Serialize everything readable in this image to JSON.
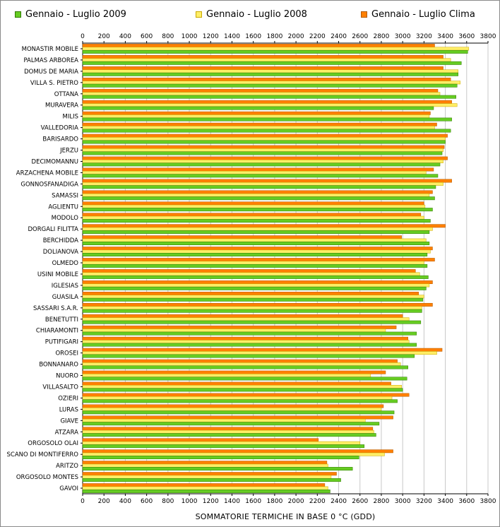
{
  "chart_data": {
    "type": "bar",
    "orientation": "horizontal",
    "title": "",
    "xlabel": "SOMMATORIE TERMICHE IN BASE 0 °C (GDD)",
    "ylabel": "",
    "xlim": [
      0,
      3800
    ],
    "ticks": [
      0,
      200,
      400,
      600,
      800,
      1000,
      1200,
      1400,
      1600,
      1800,
      2000,
      2200,
      2400,
      2600,
      2800,
      3000,
      3200,
      3400,
      3600,
      3800
    ],
    "grid": true,
    "legend_position": "top",
    "categories": [
      "MONASTIR MOBILE",
      "PALMAS ARBOREA",
      "DOMUS DE MARIA",
      "VILLA S. PIETRO",
      "OTTANA",
      "MURAVERA",
      "MILIS",
      "VALLEDORIA",
      "BARISARDO",
      "JERZU",
      "DECIMOMANNU",
      "ARZACHENA MOBILE",
      "GONNOSFANADIGA",
      "SAMASSI",
      "AGLIENTU",
      "MODOLO",
      "DORGALI FILITTA",
      "BERCHIDDA",
      "DOLIANOVA",
      "OLMEDO",
      "USINI MOBILE",
      "IGLESIAS",
      "GUASILA",
      "SASSARI S.A.R.",
      "BENETUTTI",
      "CHIARAMONTI",
      "PUTIFIGARI",
      "OROSEI",
      "BONNANARO",
      "NUORO",
      "VILLASALTO",
      "OZIERI",
      "LURAS",
      "GIAVE",
      "ATZARA",
      "ORGOSOLO OLAI",
      "SCANO DI MONTIFERRO",
      "ARITZO",
      "ORGOSOLO MONTES",
      "GAVOI"
    ],
    "series": [
      {
        "name": "Gennaio - Luglio Clima",
        "color": "#ff8000",
        "values": [
          3300,
          3380,
          3380,
          3450,
          3330,
          3460,
          3260,
          3320,
          3420,
          3390,
          3420,
          3290,
          3460,
          3280,
          3200,
          3170,
          3400,
          2990,
          3280,
          3300,
          3120,
          3280,
          3150,
          3280,
          3000,
          2940,
          3050,
          3370,
          2950,
          2840,
          2890,
          3060,
          2820,
          2910,
          2720,
          2210,
          2910,
          2290,
          2380,
          2270
        ]
      },
      {
        "name": "Gennaio - Luglio 2008",
        "color": "#ffee66",
        "values": [
          3620,
          3450,
          3520,
          3540,
          3350,
          3510,
          3250,
          3300,
          3400,
          3380,
          3380,
          3220,
          3380,
          3250,
          3210,
          3200,
          3280,
          3220,
          3260,
          3200,
          3160,
          3250,
          3200,
          3180,
          3060,
          2840,
          3060,
          3320,
          2980,
          2700,
          2990,
          2900,
          2800,
          2650,
          2730,
          2600,
          2830,
          2300,
          2330,
          2300
        ]
      },
      {
        "name": "Gennaio - Luglio 2009",
        "color": "#66cc22",
        "values": [
          3610,
          3550,
          3520,
          3510,
          3500,
          3290,
          3460,
          3450,
          3400,
          3370,
          3350,
          3330,
          3310,
          3300,
          3280,
          3260,
          3250,
          3250,
          3230,
          3230,
          3240,
          3220,
          3190,
          3180,
          3170,
          3130,
          3130,
          3110,
          3050,
          3040,
          3000,
          2950,
          2920,
          2780,
          2750,
          2640,
          2590,
          2530,
          2420,
          2320
        ]
      }
    ]
  }
}
